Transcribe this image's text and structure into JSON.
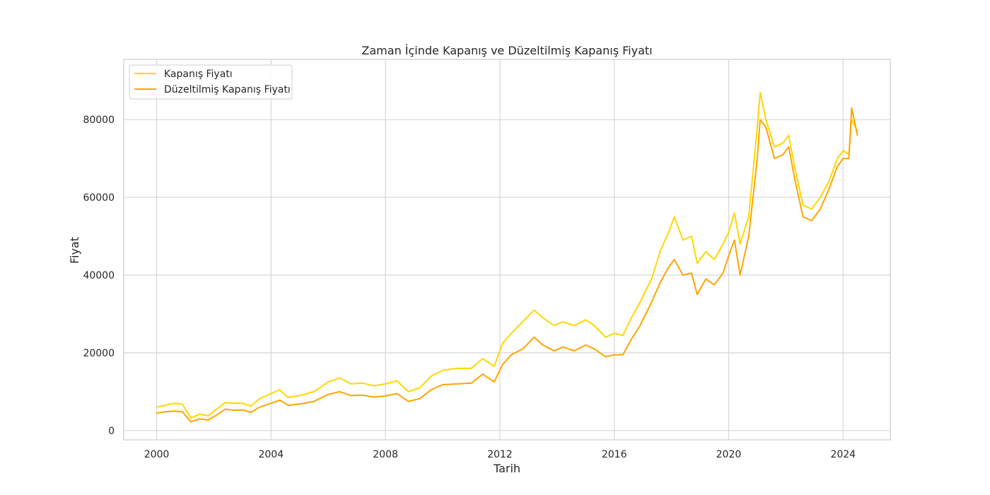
{
  "chart_data": {
    "type": "line",
    "title": "Zaman İçinde Kapanış ve Düzeltilmiş Kapanış Fiyatı",
    "xlabel": "Tarih",
    "ylabel": "Fiyat",
    "xlim": [
      1998.85,
      2025.65
    ],
    "ylim": [
      -2400,
      95500
    ],
    "x_ticks": [
      2000,
      2004,
      2008,
      2012,
      2016,
      2020,
      2024
    ],
    "x_tick_labels": [
      "2000",
      "2004",
      "2008",
      "2012",
      "2016",
      "2020",
      "2024"
    ],
    "y_ticks": [
      0,
      20000,
      40000,
      60000,
      80000
    ],
    "y_tick_labels": [
      "0",
      "20000",
      "40000",
      "60000",
      "80000"
    ],
    "grid": true,
    "legend_position": "top-left",
    "series": [
      {
        "name": "Kapanış Fiyatı",
        "color": "#FFD700",
        "x": [
          2000.0,
          2000.3,
          2000.6,
          2000.9,
          2001.2,
          2001.5,
          2001.8,
          2002.1,
          2002.4,
          2002.7,
          2003.0,
          2003.3,
          2003.6,
          2004.0,
          2004.3,
          2004.6,
          2005.0,
          2005.5,
          2006.0,
          2006.4,
          2006.8,
          2007.2,
          2007.6,
          2008.0,
          2008.4,
          2008.8,
          2009.2,
          2009.6,
          2010.0,
          2010.5,
          2011.0,
          2011.4,
          2011.8,
          2012.1,
          2012.4,
          2012.8,
          2013.2,
          2013.5,
          2013.9,
          2014.2,
          2014.6,
          2015.0,
          2015.3,
          2015.7,
          2016.0,
          2016.3,
          2016.6,
          2016.9,
          2017.3,
          2017.6,
          2017.9,
          2018.1,
          2018.4,
          2018.7,
          2018.9,
          2019.2,
          2019.5,
          2019.8,
          2020.0,
          2020.2,
          2020.4,
          2020.7,
          2021.0,
          2021.1,
          2021.3,
          2021.6,
          2021.9,
          2022.1,
          2022.3,
          2022.6,
          2022.9,
          2023.2,
          2023.5,
          2023.8,
          2024.0,
          2024.2,
          2024.3,
          2024.5
        ],
        "values": [
          6000,
          6500,
          7000,
          6800,
          3200,
          4200,
          3800,
          5500,
          7200,
          7000,
          7000,
          6300,
          8200,
          9500,
          10500,
          8500,
          9000,
          10000,
          12500,
          13500,
          12000,
          12200,
          11500,
          12000,
          12800,
          10000,
          11000,
          14000,
          15500,
          16000,
          16000,
          18500,
          16500,
          22500,
          25000,
          28000,
          31000,
          29000,
          27000,
          28000,
          27000,
          28500,
          27000,
          24000,
          25000,
          24500,
          29000,
          33000,
          39000,
          46000,
          51000,
          55000,
          49000,
          50000,
          43000,
          46000,
          44000,
          48000,
          51000,
          56000,
          48000,
          55000,
          78000,
          87000,
          80000,
          73000,
          74000,
          76000,
          68000,
          58000,
          57000,
          60000,
          64000,
          70000,
          72000,
          71000,
          80000,
          77000
        ]
      },
      {
        "name": "Düzeltilmiş Kapanış Fiyatı",
        "color": "#FFA500",
        "x": [
          2000.0,
          2000.3,
          2000.6,
          2000.9,
          2001.2,
          2001.5,
          2001.8,
          2002.1,
          2002.4,
          2002.7,
          2003.0,
          2003.3,
          2003.6,
          2004.0,
          2004.3,
          2004.6,
          2005.0,
          2005.5,
          2006.0,
          2006.4,
          2006.8,
          2007.2,
          2007.6,
          2008.0,
          2008.4,
          2008.8,
          2009.2,
          2009.6,
          2010.0,
          2010.5,
          2011.0,
          2011.4,
          2011.8,
          2012.1,
          2012.4,
          2012.8,
          2013.2,
          2013.5,
          2013.9,
          2014.2,
          2014.6,
          2015.0,
          2015.3,
          2015.7,
          2016.0,
          2016.3,
          2016.6,
          2016.9,
          2017.3,
          2017.6,
          2017.9,
          2018.1,
          2018.4,
          2018.7,
          2018.9,
          2019.2,
          2019.5,
          2019.8,
          2020.0,
          2020.2,
          2020.4,
          2020.7,
          2021.0,
          2021.1,
          2021.3,
          2021.6,
          2021.9,
          2022.1,
          2022.3,
          2022.6,
          2022.9,
          2023.2,
          2023.5,
          2023.8,
          2024.0,
          2024.2,
          2024.3,
          2024.5
        ],
        "values": [
          4500,
          4800,
          5000,
          4800,
          2200,
          3000,
          2700,
          4000,
          5500,
          5200,
          5300,
          4700,
          6000,
          7000,
          7800,
          6500,
          6800,
          7500,
          9300,
          10000,
          9000,
          9100,
          8600,
          8900,
          9500,
          7500,
          8200,
          10500,
          11800,
          12000,
          12200,
          14500,
          12500,
          17000,
          19500,
          21000,
          24000,
          22000,
          20500,
          21500,
          20500,
          22000,
          21000,
          19000,
          19500,
          19500,
          23500,
          27000,
          33000,
          38000,
          42000,
          44000,
          40000,
          40500,
          35000,
          39000,
          37500,
          40500,
          45000,
          49000,
          40000,
          50000,
          70000,
          80000,
          78000,
          70000,
          71000,
          73000,
          65000,
          55000,
          54000,
          57000,
          62000,
          68000,
          70000,
          70000,
          83000,
          76000
        ]
      }
    ]
  }
}
